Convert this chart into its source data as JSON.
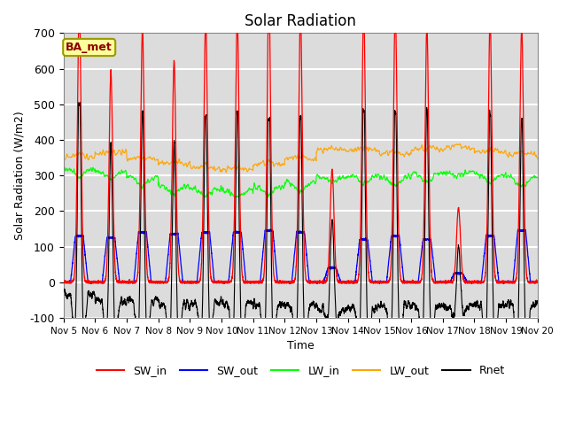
{
  "title": "Solar Radiation",
  "ylabel": "Solar Radiation (W/m2)",
  "xlabel": "Time",
  "ylim": [
    -100,
    700
  ],
  "yticks": [
    -100,
    0,
    100,
    200,
    300,
    400,
    500,
    600,
    700
  ],
  "n_days": 15,
  "pts_per_day": 288,
  "legend_labels": [
    "SW_in",
    "SW_out",
    "LW_in",
    "LW_out",
    "Rnet"
  ],
  "legend_colors": [
    "red",
    "blue",
    "#00FF00",
    "orange",
    "black"
  ],
  "annotation_text": "BA_met",
  "annotation_box_color": "#FFFF99",
  "annotation_box_edge": "#999900",
  "axes_bg": "#DCDCDC",
  "grid_color": "white",
  "xtick_labels": [
    "Nov 5",
    "Nov 6",
    "Nov 7",
    "Nov 8",
    "Nov 9",
    "Nov 10",
    "Nov 11",
    "Nov 12",
    "Nov 13",
    "Nov 14",
    "Nov 15",
    "Nov 16",
    "Nov 17",
    "Nov 18",
    "Nov 19",
    "Nov 20"
  ]
}
